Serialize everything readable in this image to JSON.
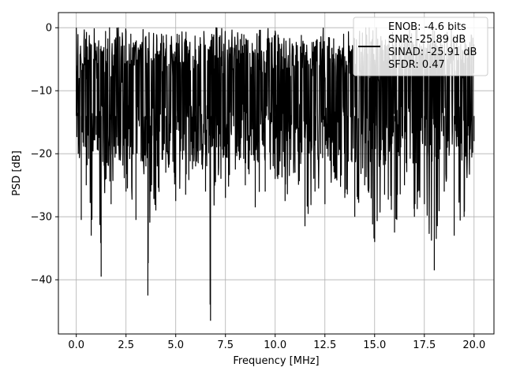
{
  "chart_data": {
    "type": "line",
    "xlabel": "Frequency [MHz]",
    "ylabel": "PSD [dB]",
    "xlim": [
      -0.9,
      21.0
    ],
    "ylim": [
      -48.6,
      2.4
    ],
    "x_ticks": [
      0.0,
      2.5,
      5.0,
      7.5,
      10.0,
      12.5,
      15.0,
      17.5,
      20.0
    ],
    "x_tick_labels": [
      "0.0",
      "2.5",
      "5.0",
      "7.5",
      "10.0",
      "12.5",
      "15.0",
      "17.5",
      "20.0"
    ],
    "y_ticks": [
      0,
      -10,
      -20,
      -30,
      -40
    ],
    "y_tick_labels": [
      "0",
      "−10",
      "−20",
      "−30",
      "−40"
    ],
    "grid": true,
    "legend_position": "top-right",
    "line_color": "#000000",
    "legend": [
      "ENOB: -4.6 bits",
      "SNR: -25.89 dB",
      "SINAD: -25.91 dB",
      "SFDR: 0.47"
    ],
    "series": [
      {
        "x": [
          0.0,
          0.02,
          0.05,
          0.1,
          0.25,
          0.5,
          0.75,
          1.0,
          1.25,
          1.5,
          1.75,
          2.0,
          2.5,
          3.0,
          3.5,
          3.6,
          3.75,
          4.0,
          4.5,
          5.0,
          5.5,
          6.0,
          6.5,
          6.75,
          7.0,
          7.5,
          8.0,
          8.5,
          9.0,
          9.5,
          10.0,
          10.5,
          11.0,
          11.5,
          12.0,
          12.5,
          13.0,
          13.5,
          14.0,
          14.5,
          15.0,
          15.5,
          16.0,
          16.5,
          17.0,
          17.5,
          18.0,
          18.5,
          19.0,
          19.5,
          20.0
        ],
        "y": [
          0.0,
          -6.0,
          -13.5,
          -20.0,
          -30.5,
          -25.0,
          -33.0,
          -17.0,
          -39.5,
          -24.0,
          -28.0,
          -20.0,
          -26.0,
          -30.5,
          -22.0,
          -42.5,
          -26.0,
          -29.0,
          -23.0,
          -27.5,
          -26.5,
          -22.0,
          -26.0,
          -46.5,
          -24.5,
          -27.0,
          -22.5,
          -25.0,
          -28.5,
          -26.0,
          -24.0,
          -27.5,
          -23.0,
          -31.5,
          -26.0,
          -28.0,
          -24.0,
          -27.0,
          -30.0,
          -25.0,
          -34.0,
          -26.5,
          -32.5,
          -25.0,
          -30.0,
          -28.0,
          -38.5,
          -26.0,
          -33.0,
          -30.0,
          -18.0
        ]
      }
    ]
  }
}
